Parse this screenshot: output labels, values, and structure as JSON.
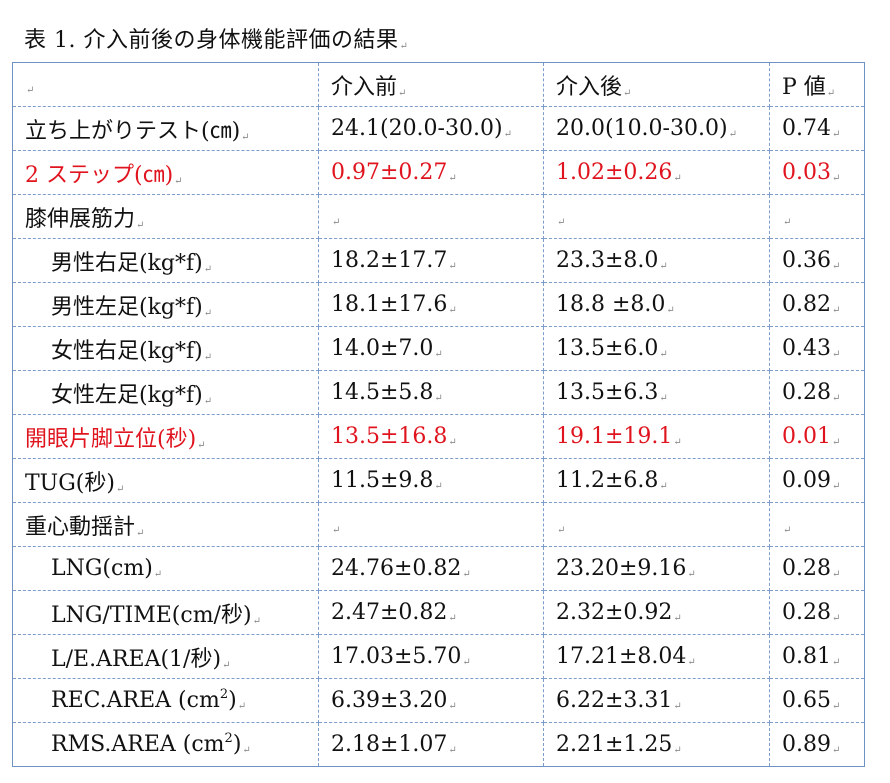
{
  "caption": "表 1.  介入前後の身体機能評価の結果",
  "para_mark": "↵",
  "header": {
    "c1": "",
    "c2": "介入前",
    "c3": "介入後",
    "c4": "P 値"
  },
  "rows": [
    {
      "label": "立ち上がりテスト(㎝)",
      "before": "24.1(20.0-30.0)",
      "after": "20.0(10.0-30.0)",
      "p": "0.74"
    },
    {
      "label": "2 ステップ(㎝)",
      "before": "0.97±0.27",
      "after": "1.02±0.26",
      "p": "0.03"
    },
    {
      "label": "膝伸展筋力",
      "before": "",
      "after": "",
      "p": ""
    },
    {
      "label": "男性右足(kg*f)",
      "before": "18.2±17.7",
      "after": "23.3±8.0",
      "p": "0.36"
    },
    {
      "label": "男性左足(kg*f)",
      "before": "18.1±17.6",
      "after": "18.8 ±8.0",
      "p": "0.82"
    },
    {
      "label": "女性右足(kg*f)",
      "before": "14.0±7.0",
      "after": "13.5±6.0",
      "p": "0.43"
    },
    {
      "label": "女性左足(kg*f)",
      "before": "14.5±5.8",
      "after": "13.5±6.3",
      "p": "0.28"
    },
    {
      "label": "開眼片脚立位(秒)",
      "before": "13.5±16.8",
      "after": "19.1±19.1",
      "p": "0.01"
    },
    {
      "label": "TUG(秒)",
      "before": "11.5±9.8",
      "after": "11.2±6.8",
      "p": "0.09"
    },
    {
      "label": "重心動揺計",
      "before": "",
      "after": "",
      "p": ""
    },
    {
      "label": "LNG(cm)",
      "before": "24.76±0.82",
      "after": "23.20±9.16",
      "p": "0.28"
    },
    {
      "label": "LNG/TIME(cm/秒)",
      "before": "2.47±0.82",
      "after": "2.32±0.92",
      "p": "0.28"
    },
    {
      "label": "L/E.AREA(1/秒)",
      "before": "17.03±5.70",
      "after": "17.21±8.04",
      "p": "0.81"
    },
    {
      "label_pre": "REC.AREA (cm",
      "label_sup": "2",
      "label_post": ")",
      "before": "6.39±3.20",
      "after": "6.22±3.31",
      "p": "0.65"
    },
    {
      "label_pre": "RMS.AREA (cm",
      "label_sup": "2",
      "label_post": ")",
      "before": "2.18±1.07",
      "after": "2.21±1.25",
      "p": "0.89"
    }
  ],
  "colors": {
    "highlight": "#e0141e",
    "border": "#7d9cc9"
  }
}
